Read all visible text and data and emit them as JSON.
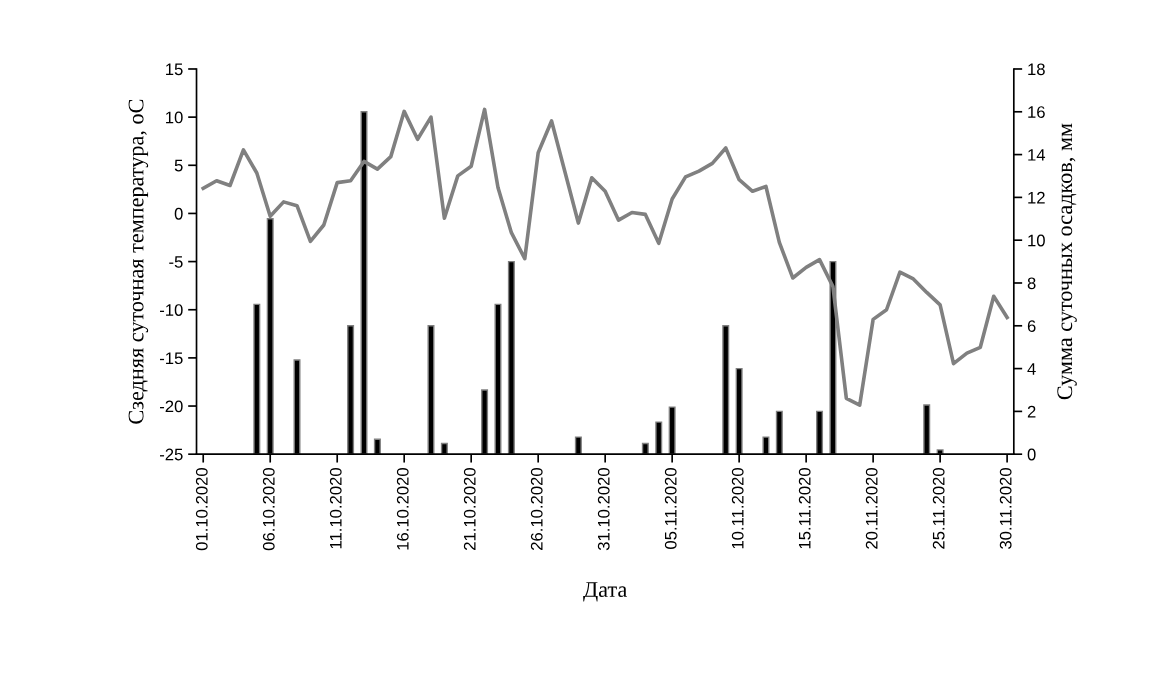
{
  "chart_data": {
    "type": "line",
    "xlabel": "Дата",
    "ylabel": "Сзедняя суточная температура, оС",
    "y2label": "Сумма суточных осадков, мм",
    "x": [
      "2020-10-01",
      "2020-10-02",
      "2020-10-03",
      "2020-10-04",
      "2020-10-05",
      "2020-10-06",
      "2020-10-07",
      "2020-10-08",
      "2020-10-09",
      "2020-10-10",
      "2020-10-11",
      "2020-10-12",
      "2020-10-13",
      "2020-10-14",
      "2020-10-15",
      "2020-10-16",
      "2020-10-17",
      "2020-10-18",
      "2020-10-19",
      "2020-10-20",
      "2020-10-21",
      "2020-10-22",
      "2020-10-23",
      "2020-10-24",
      "2020-10-25",
      "2020-10-26",
      "2020-10-27",
      "2020-10-28",
      "2020-10-29",
      "2020-10-30",
      "2020-10-31",
      "2020-11-01",
      "2020-11-02",
      "2020-11-03",
      "2020-11-04",
      "2020-11-05",
      "2020-11-06",
      "2020-11-07",
      "2020-11-08",
      "2020-11-09",
      "2020-11-10",
      "2020-11-11",
      "2020-11-12",
      "2020-11-13",
      "2020-11-14",
      "2020-11-15",
      "2020-11-16",
      "2020-11-17",
      "2020-11-18",
      "2020-11-19",
      "2020-11-20",
      "2020-11-21",
      "2020-11-22",
      "2020-11-23",
      "2020-11-24",
      "2020-11-25",
      "2020-11-26",
      "2020-11-27",
      "2020-11-28",
      "2020-11-29",
      "2020-11-30"
    ],
    "series": [
      {
        "type": "bar",
        "axis": "y2",
        "color": "#000000",
        "values": [
          null,
          null,
          null,
          null,
          7.0,
          11.0,
          null,
          4.4,
          null,
          null,
          null,
          6.0,
          16.0,
          0.7,
          null,
          null,
          null,
          6.0,
          0.5,
          null,
          null,
          3.0,
          7.0,
          9.0,
          null,
          null,
          null,
          null,
          0.8,
          null,
          null,
          null,
          null,
          0.5,
          1.5,
          2.2,
          null,
          null,
          null,
          6.0,
          4.0,
          null,
          0.8,
          2.0,
          null,
          null,
          2.0,
          9.0,
          null,
          null,
          null,
          null,
          null,
          null,
          2.3,
          0.2,
          null,
          null,
          null,
          null,
          null
        ]
      },
      {
        "color": "#808080",
        "values": [
          2.6,
          3.4,
          2.9,
          6.6,
          4.2,
          -0.3,
          1.2,
          0.8,
          -2.9,
          -1.2,
          3.2,
          3.4,
          5.4,
          4.6,
          5.9,
          10.6,
          7.7,
          10.0,
          -0.5,
          3.9,
          4.9,
          10.8,
          2.7,
          -2.0,
          -4.7,
          6.3,
          9.6,
          4.3,
          -1.0,
          3.7,
          2.3,
          -0.7,
          0.1,
          -0.1,
          -3.1,
          1.5,
          3.8,
          4.4,
          5.2,
          6.8,
          3.5,
          2.3,
          2.8,
          -3.0,
          -6.7,
          -5.6,
          -4.8,
          -7.6,
          -19.2,
          -19.9,
          -11.0,
          -10.0,
          -6.1,
          -6.8,
          -8.2,
          -9.5,
          -15.6,
          -14.5,
          -13.9,
          -8.6,
          -10.8
        ]
      }
    ],
    "xlim": [
      "2020-09-30T12:00",
      "2020-11-30T12:00"
    ],
    "xticks": [
      {
        "value": "2020-10-01",
        "label": "01.10.2020"
      },
      {
        "value": "2020-10-06",
        "label": "06.10.2020"
      },
      {
        "value": "2020-10-11",
        "label": "11.10.2020"
      },
      {
        "value": "2020-10-16",
        "label": "16.10.2020"
      },
      {
        "value": "2020-10-21",
        "label": "21.10.2020"
      },
      {
        "value": "2020-10-26",
        "label": "26.10.2020"
      },
      {
        "value": "2020-10-31",
        "label": "31.10.2020"
      },
      {
        "value": "2020-11-05",
        "label": "05.11.2020"
      },
      {
        "value": "2020-11-10",
        "label": "10.11.2020"
      },
      {
        "value": "2020-11-15",
        "label": "15.11.2020"
      },
      {
        "value": "2020-11-20",
        "label": "20.11.2020"
      },
      {
        "value": "2020-11-25",
        "label": "25.11.2020"
      },
      {
        "value": "2020-11-30",
        "label": "30.11.2020"
      }
    ],
    "ylim": [
      -25,
      15
    ],
    "yticks": [
      -25,
      -20,
      -15,
      -10,
      -5,
      0,
      5,
      10,
      15
    ],
    "y2lim": [
      0,
      18
    ],
    "y2ticks": [
      0,
      2,
      4,
      6,
      8,
      10,
      12,
      14,
      16,
      18
    ],
    "grid": false,
    "legend": false,
    "marker": "none",
    "line_style": "solid"
  }
}
